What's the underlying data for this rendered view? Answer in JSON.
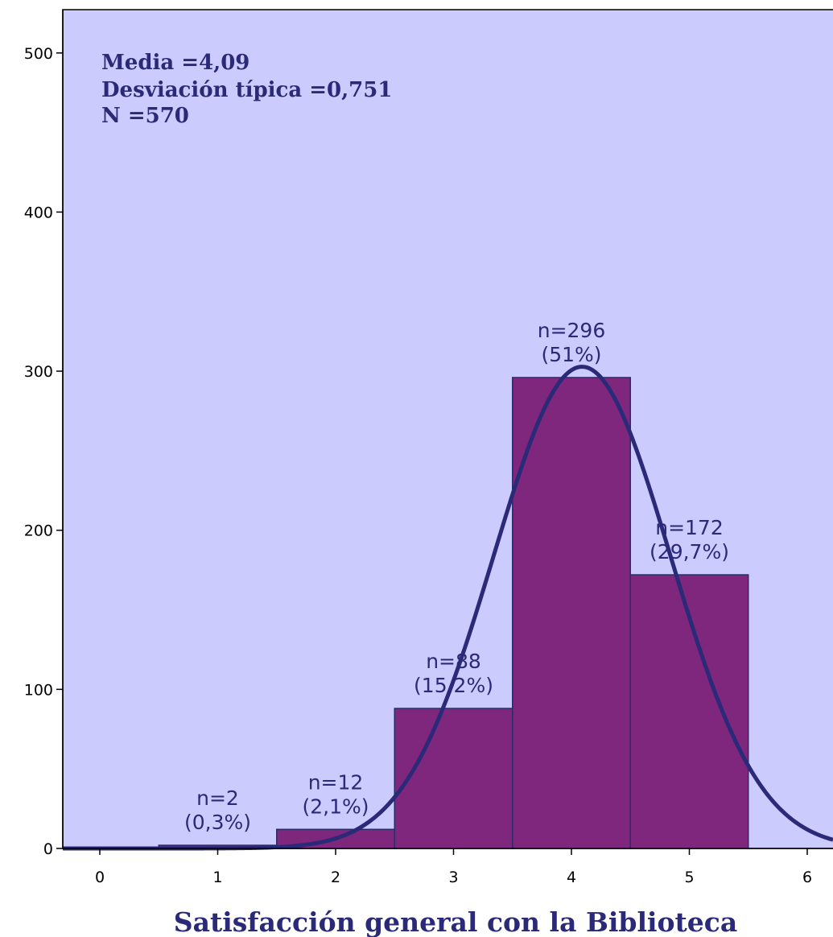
{
  "chart_data": {
    "type": "bar",
    "title": "",
    "xlabel": "Satisfacción general con la Biblioteca",
    "ylabel": "",
    "xlim": [
      -0.35,
      6.2
    ],
    "ylim": [
      0,
      525
    ],
    "x_ticks": [
      0,
      1,
      2,
      3,
      4,
      5,
      6
    ],
    "y_ticks": [
      0,
      100,
      200,
      300,
      400,
      500
    ],
    "stats": [
      "Media =4,09",
      "Desviación típica =0,751",
      "N =570"
    ],
    "bars": [
      {
        "x": 1,
        "value": 2,
        "label_n": "n=2",
        "label_pct": "(0,3%)"
      },
      {
        "x": 2,
        "value": 12,
        "label_n": "n=12",
        "label_pct": "(2,1%)"
      },
      {
        "x": 3,
        "value": 88,
        "label_n": "n=88",
        "label_pct": "(15,2%)"
      },
      {
        "x": 4,
        "value": 296,
        "label_n": "n=296",
        "label_pct": "(51%)"
      },
      {
        "x": 5,
        "value": 172,
        "label_n": "n=172",
        "label_pct": "(29,7%)"
      }
    ],
    "normal_curve": {
      "mean": 4.09,
      "sd": 0.751,
      "n": 570,
      "bin_width": 1
    },
    "grid": false,
    "colors": {
      "plot_background": "#cccbfd",
      "bar_fill": "#7e277c",
      "bar_stroke": "#2b2b6a",
      "curve": "#2a2a78",
      "text": "#2a2a78"
    }
  }
}
